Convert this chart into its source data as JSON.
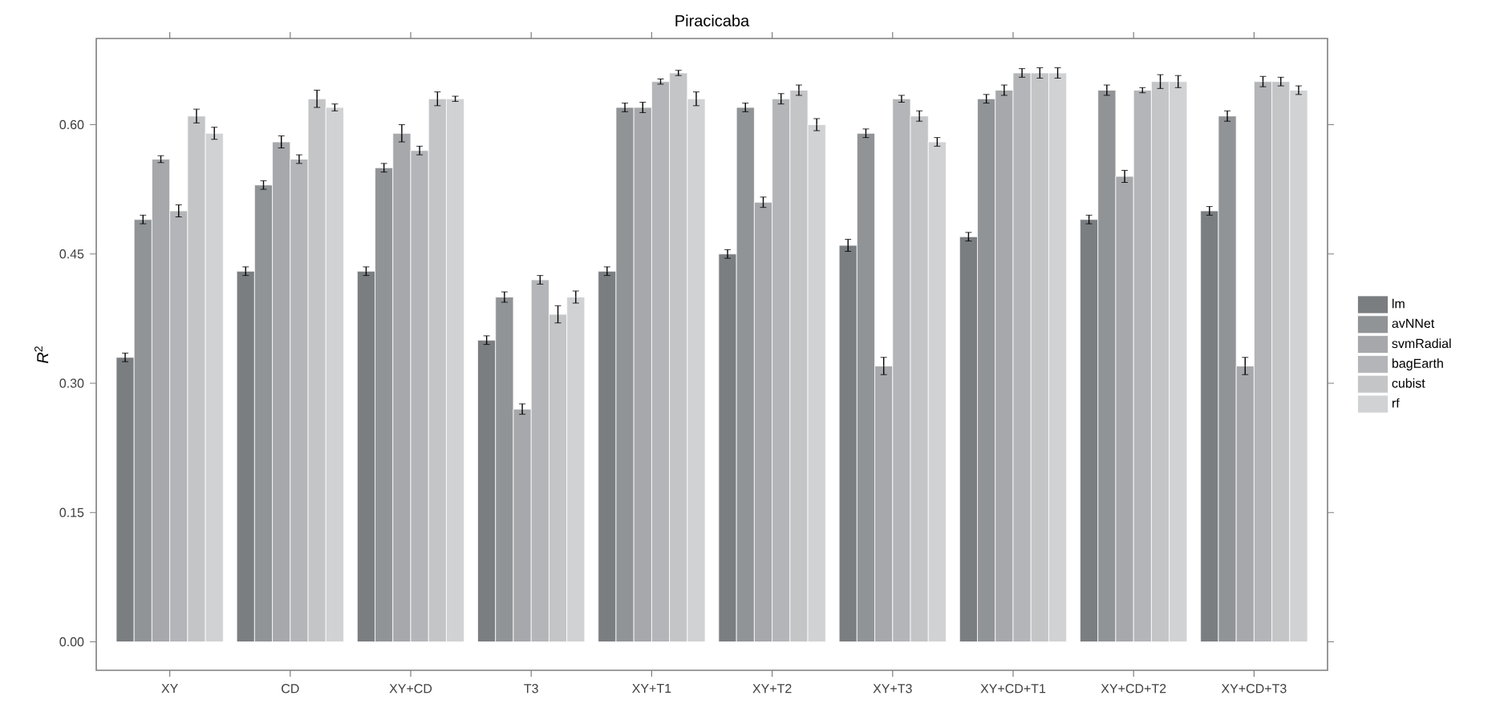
{
  "chart_data": {
    "type": "bar",
    "title": "Piracicaba",
    "ylabel": "*R*$^{2}$",
    "categories": [
      "XY",
      "CD",
      "XY+CD",
      "T3",
      "XY+T1",
      "XY+T2",
      "XY+T3",
      "XY+CD+T1",
      "XY+CD+T2",
      "XY+CD+T3"
    ],
    "series": [
      {
        "name": "lm",
        "color": "#7b7e81",
        "values": [
          0.33,
          0.43,
          0.43,
          0.35,
          0.43,
          0.45,
          0.46,
          0.47,
          0.49,
          0.5
        ],
        "errors": [
          0.005,
          0.005,
          0.005,
          0.005,
          0.005,
          0.005,
          0.007,
          0.005,
          0.005,
          0.005
        ]
      },
      {
        "name": "avNNet",
        "color": "#919497",
        "values": [
          0.49,
          0.53,
          0.55,
          0.4,
          0.62,
          0.62,
          0.59,
          0.63,
          0.64,
          0.61
        ],
        "errors": [
          0.005,
          0.005,
          0.005,
          0.006,
          0.005,
          0.005,
          0.005,
          0.005,
          0.006,
          0.006
        ]
      },
      {
        "name": "svmRadial",
        "color": "#a7a8ab",
        "values": [
          0.56,
          0.58,
          0.59,
          0.27,
          0.62,
          0.51,
          0.32,
          0.64,
          0.54,
          0.32
        ],
        "errors": [
          0.004,
          0.007,
          0.01,
          0.006,
          0.006,
          0.006,
          0.01,
          0.006,
          0.007,
          0.01
        ]
      },
      {
        "name": "bagEarth",
        "color": "#b4b5b8",
        "values": [
          0.5,
          0.56,
          0.57,
          0.42,
          0.65,
          0.63,
          0.63,
          0.66,
          0.64,
          0.65
        ],
        "errors": [
          0.007,
          0.005,
          0.005,
          0.005,
          0.003,
          0.006,
          0.004,
          0.005,
          0.003,
          0.006
        ]
      },
      {
        "name": "cubist",
        "color": "#c4c5c7",
        "values": [
          0.61,
          0.63,
          0.63,
          0.38,
          0.66,
          0.64,
          0.61,
          0.66,
          0.65,
          0.65
        ],
        "errors": [
          0.008,
          0.01,
          0.008,
          0.01,
          0.003,
          0.006,
          0.006,
          0.006,
          0.008,
          0.005
        ]
      },
      {
        "name": "rf",
        "color": "#d1d2d4",
        "values": [
          0.59,
          0.62,
          0.63,
          0.4,
          0.63,
          0.6,
          0.58,
          0.66,
          0.65,
          0.64
        ],
        "errors": [
          0.007,
          0.004,
          0.003,
          0.007,
          0.008,
          0.007,
          0.005,
          0.006,
          0.007,
          0.005
        ]
      }
    ],
    "ylim": [
      -0.033,
      0.7
    ],
    "yticks": [
      {
        "value": 0,
        "label": "0.00"
      },
      {
        "value": 0.15,
        "label": "0.15"
      },
      {
        "value": 0.3,
        "label": "0.30"
      },
      {
        "value": 0.45,
        "label": "0.45"
      },
      {
        "value": 0.6,
        "label": "0.60"
      }
    ],
    "grid": false,
    "legend": "right"
  }
}
